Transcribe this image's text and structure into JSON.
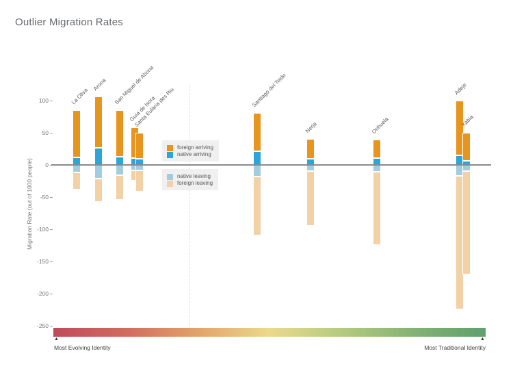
{
  "title": "Outlier Migration Rates",
  "colors": {
    "foreign_arriving": "#e8951f",
    "native_arriving": "#2fa4d9",
    "native_leaving": "#a3cdde",
    "foreign_leaving": "#f3d1a7",
    "zero_line": "#8a8a8a",
    "gradient_start": "#bf4b5b",
    "gradient_end": "#5fa06c"
  },
  "y_axis": {
    "title": "Migration Rate (out of 1000 people)",
    "ticks": [
      100,
      50,
      0,
      -50,
      -100,
      -150,
      -200,
      -250
    ]
  },
  "legend": {
    "arriving": [
      {
        "label": "foreign arriving",
        "color_key": "foreign_arriving"
      },
      {
        "label": "native arriving",
        "color_key": "native_arriving"
      }
    ],
    "leaving": [
      {
        "label": "native leaving",
        "color_key": "native_leaving"
      },
      {
        "label": "foreign leaving",
        "color_key": "foreign_leaving"
      }
    ]
  },
  "identity_scale": {
    "left_label": "Most Evolving Identity",
    "right_label": "Most Traditional Identity",
    "gradient": [
      "#bf4b5b",
      "#d06b5e",
      "#e2a36a",
      "#ebd98b",
      "#b4cb80",
      "#83b274",
      "#5fa06c"
    ]
  },
  "chart_data": {
    "type": "bar",
    "title": "Outlier Migration Rates",
    "ylabel": "Migration Rate (out of 1000 people)",
    "ylim": [
      -250,
      110
    ],
    "x_encoding": "position along identity scale (0 = most evolving, 1 = most traditional)",
    "legend_position": "inside-left",
    "grid": false,
    "series": [
      {
        "name": "La Oliva",
        "x": 0.053,
        "foreign_arriving": 73,
        "native_arriving": 12,
        "native_leaving": -12,
        "foreign_leaving": -26
      },
      {
        "name": "Arona",
        "x": 0.103,
        "foreign_arriving": 79,
        "native_arriving": 27,
        "native_leaving": -21,
        "foreign_leaving": -36
      },
      {
        "name": "San Miguel de Abona",
        "x": 0.152,
        "foreign_arriving": 72,
        "native_arriving": 13,
        "native_leaving": -16,
        "foreign_leaving": -38
      },
      {
        "name": "Guía de Isora",
        "x": 0.186,
        "foreign_arriving": 48,
        "native_arriving": 11,
        "native_leaving": -8,
        "foreign_leaving": -16
      },
      {
        "name": "Santa Eulària des Riu",
        "x": 0.197,
        "foreign_arriving": 40,
        "native_arriving": 10,
        "native_leaving": -9,
        "foreign_leaving": -32
      },
      {
        "name": "Santiago del Teide",
        "x": 0.466,
        "foreign_arriving": 60,
        "native_arriving": 21,
        "native_leaving": -18,
        "foreign_leaving": -92
      },
      {
        "name": "Nerja",
        "x": 0.588,
        "foreign_arriving": 30,
        "native_arriving": 10,
        "native_leaving": -10,
        "foreign_leaving": -85
      },
      {
        "name": "Orihuela",
        "x": 0.739,
        "foreign_arriving": 28,
        "native_arriving": 11,
        "native_leaving": -11,
        "foreign_leaving": -114
      },
      {
        "name": "Adeje",
        "x": 0.928,
        "foreign_arriving": 85,
        "native_arriving": 15,
        "native_leaving": -17,
        "foreign_leaving": -208
      },
      {
        "name": "Xàbia",
        "x": 0.944,
        "foreign_arriving": 44,
        "native_arriving": 6,
        "native_leaving": -10,
        "foreign_leaving": -160
      }
    ]
  }
}
